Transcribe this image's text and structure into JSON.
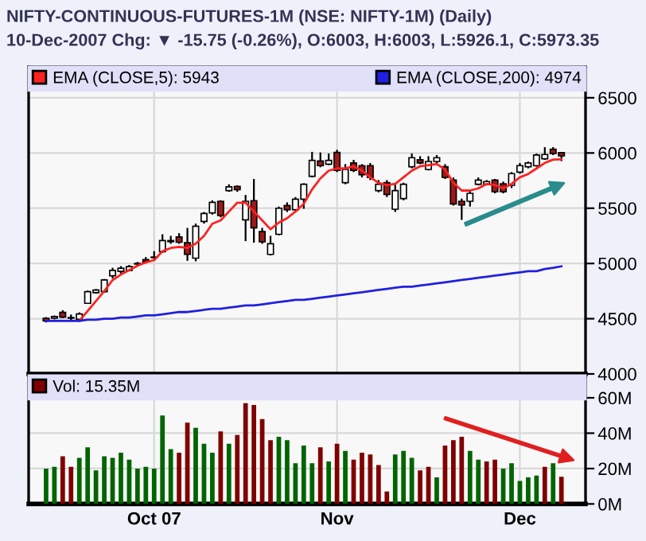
{
  "chart_data": [
    {
      "type": "candlestick",
      "title": "NIFTY-CONTINUOUS-FUTURES-1M (NSE: NIFTY-1M) (Daily)",
      "subtitle": "10-Dec-2007 Chg: ▼ -15.75 (-0.26%), O:6003, H:6003, L:5926.1, C:5973.35",
      "categories": [
        null,
        null,
        null,
        null,
        null,
        null,
        null,
        null,
        null,
        null,
        null,
        null,
        null,
        null,
        null,
        null,
        null,
        null,
        null,
        null,
        null,
        null,
        null,
        null,
        null,
        null,
        null,
        null,
        null,
        null,
        null,
        null,
        null,
        null,
        null,
        null,
        null,
        null,
        null,
        null,
        null,
        null,
        null,
        null,
        null,
        null,
        null,
        null,
        null,
        null,
        null,
        null,
        null,
        null,
        null,
        null,
        null,
        null,
        null,
        null,
        null,
        null,
        null
      ],
      "ohlc": [
        [
          4504,
          4514,
          4466,
          4480
        ],
        [
          4504,
          4529,
          4494,
          4519
        ],
        [
          4557,
          4577,
          4504,
          4514
        ],
        [
          4510,
          4538,
          4476,
          4505
        ],
        [
          4495,
          4557,
          4480,
          4543
        ],
        [
          4639,
          4755,
          4634,
          4745
        ],
        [
          4735,
          4769,
          4726,
          4759
        ],
        [
          4745,
          4860,
          4735,
          4851
        ],
        [
          4889,
          4961,
          4865,
          4937
        ],
        [
          4928,
          4976,
          4909,
          4957
        ],
        [
          4937,
          4986,
          4928,
          4971
        ],
        [
          4995,
          5014,
          4981,
          5000
        ],
        [
          5034,
          5058,
          5000,
          5014
        ],
        [
          5053,
          5111,
          5034,
          5058
        ],
        [
          5106,
          5264,
          5096,
          5207
        ],
        [
          5197,
          5250,
          5178,
          5207
        ],
        [
          5240,
          5274,
          5178,
          5192
        ],
        [
          5188,
          5322,
          5024,
          5082
        ],
        [
          5048,
          5361,
          5019,
          5337
        ],
        [
          5380,
          5466,
          5361,
          5452
        ],
        [
          5457,
          5572,
          5442,
          5553
        ],
        [
          5563,
          5572,
          5418,
          5433
        ],
        [
          5659,
          5717,
          5649,
          5693
        ],
        [
          5697,
          5707,
          5649,
          5668
        ],
        [
          5394,
          5620,
          5202,
          5563
        ],
        [
          5568,
          5765,
          5188,
          5322
        ],
        [
          5288,
          5322,
          5178,
          5197
        ],
        [
          5082,
          5250,
          5072,
          5178
        ],
        [
          5264,
          5515,
          5255,
          5500
        ],
        [
          5524,
          5553,
          5466,
          5486
        ],
        [
          5486,
          5601,
          5466,
          5582
        ],
        [
          5582,
          5726,
          5495,
          5717
        ],
        [
          5789,
          6010,
          5779,
          5933
        ],
        [
          5928,
          6005,
          5871,
          5885
        ],
        [
          5899,
          5996,
          5890,
          5933
        ],
        [
          6005,
          6029,
          5827,
          5842
        ],
        [
          5731,
          5899,
          5717,
          5851
        ],
        [
          5909,
          5938,
          5827,
          5842
        ],
        [
          5885,
          5899,
          5779,
          5803
        ],
        [
          5885,
          5909,
          5755,
          5779
        ],
        [
          5659,
          5755,
          5644,
          5717
        ],
        [
          5731,
          5755,
          5601,
          5625
        ],
        [
          5491,
          5717,
          5466,
          5659
        ],
        [
          5587,
          5731,
          5572,
          5717
        ],
        [
          5875,
          5996,
          5861,
          5957
        ],
        [
          5938,
          5971,
          5899,
          5909
        ],
        [
          5851,
          5971,
          5842,
          5923
        ],
        [
          5923,
          5981,
          5899,
          5957
        ],
        [
          5875,
          5899,
          5765,
          5779
        ],
        [
          5755,
          5779,
          5524,
          5539
        ],
        [
          5563,
          5587,
          5394,
          5529
        ],
        [
          5563,
          5659,
          5515,
          5635
        ],
        [
          5717,
          5779,
          5707,
          5755
        ],
        [
          5717,
          5755,
          5707,
          5741
        ],
        [
          5755,
          5765,
          5635,
          5649
        ],
        [
          5721,
          5741,
          5635,
          5649
        ],
        [
          5707,
          5827,
          5683,
          5813
        ],
        [
          5827,
          5909,
          5813,
          5885
        ],
        [
          5875,
          5923,
          5861,
          5909
        ],
        [
          5885,
          5996,
          5875,
          5981
        ],
        [
          5947,
          6053,
          5938,
          5986
        ],
        [
          6034,
          6053,
          5981,
          5996
        ],
        [
          6003,
          6003,
          5926.1,
          5973.35
        ]
      ],
      "series": [
        {
          "type": "line",
          "name": "EMA (CLOSE,5): 5943",
          "color": "#ff2020",
          "values": [
            null,
            null,
            null,
            null,
            4480,
            4570,
            4660,
            4750,
            4850,
            4900,
            4940,
            4980,
            5010,
            5030,
            5110,
            5140,
            5150,
            5140,
            5180,
            5250,
            5360,
            5390,
            5470,
            5550,
            5550,
            5470,
            5390,
            5310,
            5370,
            5410,
            5470,
            5540,
            5670,
            5770,
            5840,
            5860,
            5860,
            5880,
            5840,
            5780,
            5730,
            5710,
            5720,
            5780,
            5840,
            5880,
            5890,
            5900,
            5850,
            5730,
            5660,
            5660,
            5680,
            5720,
            5710,
            5680,
            5720,
            5780,
            5810,
            5860,
            5910,
            5940,
            5943
          ]
        },
        {
          "type": "line",
          "name": "EMA (CLOSE,200): 4974",
          "color": "#2020e0",
          "values": [
            4480,
            4480,
            4480,
            4480,
            4480,
            4490,
            4490,
            4500,
            4500,
            4510,
            4510,
            4520,
            4530,
            4530,
            4540,
            4550,
            4560,
            4560,
            4570,
            4580,
            4590,
            4590,
            4600,
            4610,
            4620,
            4620,
            4630,
            4640,
            4650,
            4660,
            4670,
            4670,
            4680,
            4690,
            4700,
            4710,
            4720,
            4730,
            4740,
            4750,
            4760,
            4770,
            4780,
            4790,
            4790,
            4800,
            4810,
            4820,
            4830,
            4840,
            4850,
            4860,
            4870,
            4880,
            4890,
            4900,
            4910,
            4920,
            4930,
            4930,
            4950,
            4960,
            4974
          ]
        }
      ],
      "ylim": [
        4000,
        6780
      ],
      "yticks": [
        4000,
        4500,
        5000,
        5500,
        6000,
        6500
      ],
      "grid": true,
      "legend": "top left",
      "tick_labels": "y"
    },
    {
      "type": "bar",
      "categories": [
        null,
        null,
        null,
        null,
        null,
        null,
        null,
        null,
        null,
        null,
        null,
        null,
        null,
        "Oct 07",
        null,
        null,
        null,
        null,
        null,
        null,
        null,
        null,
        null,
        null,
        null,
        null,
        null,
        null,
        null,
        null,
        null,
        null,
        null,
        null,
        null,
        "Nov",
        null,
        null,
        null,
        null,
        null,
        null,
        null,
        null,
        null,
        null,
        null,
        null,
        null,
        null,
        null,
        null,
        null,
        null,
        null,
        null,
        null,
        "Dec",
        null,
        null,
        null,
        null,
        null
      ],
      "series": [
        {
          "name": "Vol: 15.35M",
          "color": "#800000",
          "values": [
            null,
            null,
            27,
            21,
            null,
            null,
            null,
            null,
            null,
            null,
            null,
            null,
            null,
            null,
            null,
            null,
            29,
            46,
            null,
            null,
            null,
            41,
            null,
            39,
            57,
            56,
            48,
            36,
            null,
            null,
            null,
            null,
            null,
            32,
            null,
            34,
            null,
            25,
            29,
            28,
            22,
            7,
            null,
            null,
            null,
            19,
            21,
            null,
            33,
            36,
            38,
            null,
            null,
            24,
            25,
            null,
            null,
            null,
            null,
            null,
            21,
            null,
            15.35
          ]
        },
        {
          "color": "#006400",
          "values": [
            20,
            21,
            null,
            null,
            26,
            32,
            19,
            27,
            26,
            29,
            25,
            20,
            21,
            20,
            50,
            31,
            null,
            null,
            43,
            34,
            29,
            null,
            34,
            null,
            null,
            null,
            null,
            null,
            38,
            36,
            23,
            33,
            23,
            null,
            24,
            null,
            30,
            null,
            null,
            null,
            null,
            null,
            28,
            30,
            26,
            null,
            null,
            15,
            null,
            null,
            null,
            30,
            25,
            null,
            null,
            20,
            23,
            13,
            15,
            16,
            null,
            23,
            null
          ]
        }
      ],
      "ylim": [
        0,
        72.6
      ],
      "yticks": [
        {
          "value": 0,
          "label": "0M"
        },
        {
          "value": 20,
          "label": "20M"
        },
        {
          "value": 40,
          "label": "40M"
        },
        {
          "value": 60,
          "label": "60M"
        }
      ],
      "grid": true,
      "legend": "top left"
    }
  ]
}
